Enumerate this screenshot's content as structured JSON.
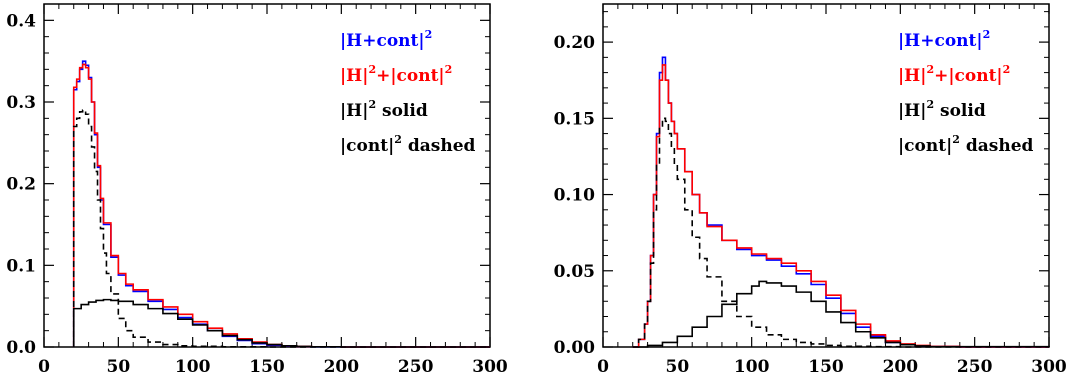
{
  "chart_data": [
    {
      "type": "line",
      "title": "",
      "xlabel": "",
      "ylabel": "",
      "xlim": [
        0,
        300
      ],
      "ylim": [
        0,
        0.42
      ],
      "xticks": [
        0,
        50,
        100,
        150,
        200,
        250,
        300
      ],
      "xtick_labels": [
        "0",
        "50",
        "100",
        "150",
        "200",
        "250",
        "300"
      ],
      "yticks": [
        0.0,
        0.1,
        0.2,
        0.3,
        0.4
      ],
      "ytick_labels": [
        "0.0",
        "0.1",
        "0.2",
        "0.3",
        "0.4"
      ],
      "legend_placement": "top-right",
      "legend": [
        {
          "base": "|H+cont|",
          "sup": "2",
          "rest": "",
          "color": "#0000ff"
        },
        {
          "base": "|H|",
          "sup": "2",
          "rest": "+|cont|",
          "sup2": "2",
          "color": "#ff0000"
        },
        {
          "base": "|H|",
          "sup": "2",
          "rest": " solid",
          "color": "#000000"
        },
        {
          "base": "|cont|",
          "sup": "2",
          "rest": " dashed",
          "color": "#000000"
        }
      ],
      "series": [
        {
          "color": "#0000ff",
          "style": "step-solid",
          "x": [
            20,
            22,
            24,
            26,
            28,
            30,
            32,
            34,
            36,
            38,
            40,
            45,
            50,
            55,
            60,
            70,
            80,
            90,
            100,
            110,
            120,
            130,
            140,
            150,
            160,
            170,
            180,
            200,
            300
          ],
          "y": [
            0.315,
            0.325,
            0.34,
            0.35,
            0.345,
            0.33,
            0.3,
            0.26,
            0.22,
            0.18,
            0.15,
            0.11,
            0.088,
            0.075,
            0.068,
            0.056,
            0.046,
            0.036,
            0.028,
            0.02,
            0.013,
            0.008,
            0.004,
            0.002,
            0.001,
            0.0005,
            0.0002,
            0.0,
            0.0
          ]
        },
        {
          "color": "#ff0000",
          "style": "step-solid",
          "x": [
            20,
            22,
            24,
            26,
            28,
            30,
            32,
            34,
            36,
            38,
            40,
            45,
            50,
            55,
            60,
            70,
            80,
            90,
            100,
            110,
            120,
            130,
            140,
            150,
            160,
            170,
            180,
            200,
            300
          ],
          "y": [
            0.318,
            0.328,
            0.342,
            0.346,
            0.342,
            0.328,
            0.3,
            0.262,
            0.222,
            0.182,
            0.152,
            0.112,
            0.09,
            0.077,
            0.07,
            0.058,
            0.049,
            0.04,
            0.031,
            0.023,
            0.016,
            0.01,
            0.006,
            0.003,
            0.0015,
            0.0007,
            0.0003,
            0.0,
            0.0
          ]
        },
        {
          "color": "#000000",
          "style": "step-solid",
          "x": [
            20,
            25,
            30,
            35,
            40,
            45,
            50,
            60,
            70,
            80,
            90,
            100,
            110,
            120,
            130,
            140,
            150,
            160,
            170,
            180,
            200,
            300
          ],
          "y": [
            0.047,
            0.052,
            0.055,
            0.057,
            0.058,
            0.057,
            0.056,
            0.052,
            0.047,
            0.041,
            0.034,
            0.027,
            0.02,
            0.014,
            0.009,
            0.005,
            0.003,
            0.0015,
            0.0007,
            0.0003,
            0.0,
            0.0
          ]
        },
        {
          "color": "#000000",
          "style": "step-dashed",
          "x": [
            20,
            22,
            24,
            26,
            28,
            30,
            32,
            34,
            36,
            38,
            40,
            42,
            45,
            50,
            55,
            60,
            70,
            80,
            90,
            100,
            120,
            150,
            300
          ],
          "y": [
            0.27,
            0.28,
            0.288,
            0.29,
            0.285,
            0.27,
            0.245,
            0.215,
            0.18,
            0.145,
            0.115,
            0.09,
            0.065,
            0.035,
            0.02,
            0.012,
            0.006,
            0.003,
            0.0015,
            0.0008,
            0.0002,
            0.0,
            0.0
          ]
        }
      ]
    },
    {
      "type": "line",
      "title": "",
      "xlabel": "",
      "ylabel": "",
      "xlim": [
        0,
        300
      ],
      "ylim": [
        0,
        0.225
      ],
      "xticks": [
        0,
        50,
        100,
        150,
        200,
        250,
        300
      ],
      "xtick_labels": [
        "0",
        "50",
        "100",
        "150",
        "200",
        "250",
        "300"
      ],
      "yticks": [
        0.0,
        0.05,
        0.1,
        0.15,
        0.2
      ],
      "ytick_labels": [
        "0.00",
        "0.05",
        "0.10",
        "0.15",
        "0.20"
      ],
      "legend_placement": "top-right",
      "legend": [
        {
          "base": "|H+cont|",
          "sup": "2",
          "rest": "",
          "color": "#0000ff"
        },
        {
          "base": "|H|",
          "sup": "2",
          "rest": "+|cont|",
          "sup2": "2",
          "color": "#ff0000"
        },
        {
          "base": "|H|",
          "sup": "2",
          "rest": " solid",
          "color": "#000000"
        },
        {
          "base": "|cont|",
          "sup": "2",
          "rest": " dashed",
          "color": "#000000"
        }
      ],
      "series": [
        {
          "color": "#0000ff",
          "style": "step-solid",
          "x": [
            20,
            24,
            28,
            30,
            32,
            34,
            36,
            38,
            40,
            42,
            44,
            46,
            48,
            50,
            55,
            60,
            65,
            70,
            80,
            90,
            100,
            110,
            120,
            130,
            140,
            150,
            160,
            170,
            180,
            190,
            200,
            210,
            220,
            240,
            300
          ],
          "y": [
            0.0,
            0.005,
            0.015,
            0.03,
            0.06,
            0.1,
            0.14,
            0.18,
            0.19,
            0.175,
            0.16,
            0.148,
            0.14,
            0.13,
            0.115,
            0.1,
            0.088,
            0.08,
            0.07,
            0.064,
            0.06,
            0.057,
            0.053,
            0.048,
            0.041,
            0.032,
            0.022,
            0.013,
            0.007,
            0.003,
            0.0015,
            0.0008,
            0.0003,
            0.0,
            0.0
          ]
        },
        {
          "color": "#ff0000",
          "style": "step-solid",
          "x": [
            20,
            24,
            28,
            30,
            32,
            34,
            36,
            38,
            40,
            42,
            44,
            46,
            48,
            50,
            55,
            60,
            65,
            70,
            80,
            90,
            100,
            110,
            120,
            130,
            140,
            150,
            160,
            170,
            180,
            190,
            200,
            210,
            220,
            240,
            300
          ],
          "y": [
            0.0,
            0.005,
            0.015,
            0.03,
            0.06,
            0.1,
            0.138,
            0.175,
            0.185,
            0.175,
            0.16,
            0.148,
            0.14,
            0.13,
            0.115,
            0.1,
            0.088,
            0.079,
            0.07,
            0.065,
            0.061,
            0.058,
            0.055,
            0.05,
            0.043,
            0.034,
            0.024,
            0.015,
            0.008,
            0.004,
            0.002,
            0.001,
            0.0004,
            0.0,
            0.0
          ]
        },
        {
          "color": "#000000",
          "style": "step-solid",
          "x": [
            20,
            30,
            40,
            50,
            60,
            70,
            80,
            90,
            100,
            105,
            110,
            120,
            130,
            140,
            150,
            160,
            170,
            180,
            190,
            200,
            210,
            220,
            300
          ],
          "y": [
            0.0,
            0.001,
            0.003,
            0.007,
            0.013,
            0.02,
            0.028,
            0.035,
            0.04,
            0.043,
            0.042,
            0.04,
            0.036,
            0.03,
            0.023,
            0.016,
            0.01,
            0.006,
            0.003,
            0.0015,
            0.0007,
            0.0002,
            0.0
          ]
        },
        {
          "color": "#000000",
          "style": "step-dashed",
          "x": [
            20,
            24,
            28,
            30,
            32,
            34,
            36,
            38,
            40,
            42,
            44,
            46,
            48,
            50,
            55,
            60,
            65,
            70,
            80,
            90,
            100,
            110,
            120,
            130,
            140,
            150,
            160,
            180,
            200,
            300
          ],
          "y": [
            0.0,
            0.005,
            0.015,
            0.03,
            0.055,
            0.09,
            0.12,
            0.145,
            0.15,
            0.148,
            0.14,
            0.13,
            0.12,
            0.11,
            0.09,
            0.072,
            0.058,
            0.046,
            0.03,
            0.02,
            0.013,
            0.008,
            0.005,
            0.003,
            0.002,
            0.001,
            0.0005,
            0.0002,
            0.0,
            0.0
          ]
        }
      ]
    }
  ]
}
